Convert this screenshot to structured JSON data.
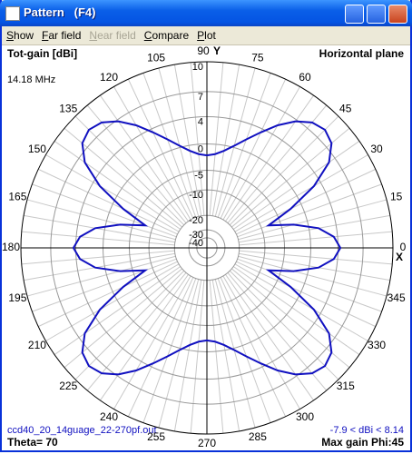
{
  "window": {
    "title": "Pattern   (F4)"
  },
  "menu": [
    "Show",
    "Far field",
    "Near field",
    "Compare",
    "Plot"
  ],
  "labels": {
    "top_left": "Tot-gain [dBi]",
    "frequency": "14.18 MHz",
    "top_right": "Horizontal plane",
    "y_axis": "Y",
    "x_axis": "X",
    "file": "ccd40_20_14guage_22-270pf.out",
    "range": "-7.9 < dBi < 8.14",
    "bottom_left": "Theta= 70",
    "bottom_right": "Max gain Phi:45"
  },
  "chart_data": {
    "type": "polar",
    "scale": "arrl",
    "rlim": [
      -40,
      10
    ],
    "rticks": [
      10,
      7,
      4,
      0,
      -5,
      -10,
      -20,
      -30,
      -40
    ],
    "angle_ticks": [
      0,
      15,
      30,
      45,
      60,
      75,
      90,
      105,
      120,
      135,
      150,
      165,
      180,
      195,
      210,
      225,
      240,
      255,
      270,
      285,
      300,
      315,
      330,
      345
    ],
    "color": "#1010c0",
    "angles": [
      0,
      5,
      10,
      15,
      20,
      25,
      30,
      35,
      40,
      45,
      50,
      55,
      60,
      65,
      70,
      75,
      80,
      85,
      90,
      95,
      100,
      105,
      110,
      115,
      120,
      125,
      130,
      135,
      140,
      145,
      150,
      155,
      160,
      165,
      170,
      175,
      180,
      185,
      190,
      195,
      200,
      205,
      210,
      215,
      220,
      225,
      230,
      235,
      240,
      245,
      250,
      255,
      260,
      265,
      270,
      275,
      280,
      285,
      290,
      295,
      300,
      305,
      310,
      315,
      320,
      325,
      330,
      335,
      340,
      345,
      350,
      355
    ],
    "values": [
      4.3,
      3.5,
      1.5,
      -2.5,
      -7.9,
      -2,
      3,
      6.2,
      7.7,
      8.14,
      7.8,
      6.8,
      5.3,
      3.5,
      1.8,
      0.3,
      -0.9,
      -1.7,
      -2,
      -1.7,
      -0.9,
      0.3,
      1.8,
      3.5,
      5.3,
      6.8,
      7.8,
      8.14,
      7.7,
      6.2,
      3,
      -2,
      -7.9,
      -2.5,
      1.5,
      3.5,
      4.3,
      3.5,
      1.5,
      -2.5,
      -7.9,
      -2,
      3,
      6.2,
      7.7,
      8.14,
      7.8,
      6.8,
      5.3,
      3.5,
      1.8,
      0.3,
      -0.9,
      -1.7,
      -2,
      -1.7,
      -0.9,
      0.3,
      1.8,
      3.5,
      5.3,
      6.8,
      7.8,
      8.14,
      7.7,
      6.2,
      3,
      -2,
      -7.9,
      -2.5,
      1.5,
      3.5
    ]
  }
}
